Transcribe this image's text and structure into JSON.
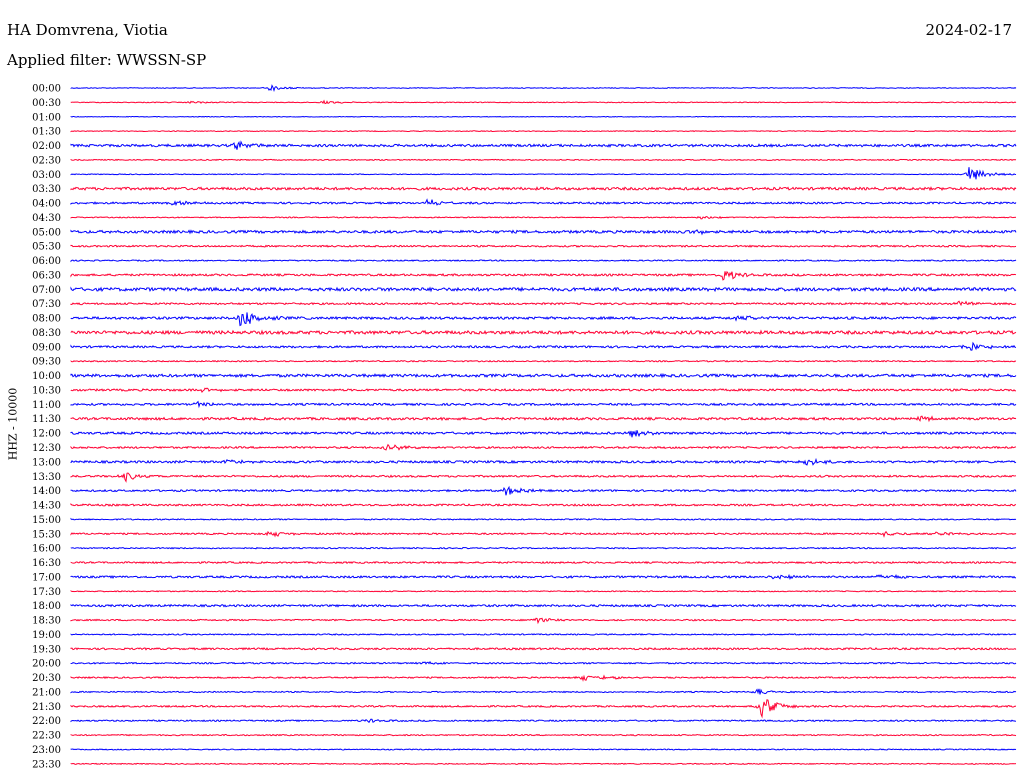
{
  "header": {
    "station": "HA Domvrena, Viotia",
    "date": "2024-02-17",
    "filter": "Applied filter: WWSSN-SP"
  },
  "colors": {
    "odd_trace": "#0000ff",
    "even_trace": "#ff0033",
    "text": "#000000"
  },
  "chart_data": {
    "type": "line",
    "title": "HA Domvrena, Viotia",
    "subtitle": "Applied filter: WWSSN-SP",
    "ylabel": "HHZ - 10000",
    "xlabel": "",
    "row_labels": [
      "00:00",
      "00:30",
      "01:00",
      "01:30",
      "02:00",
      "02:30",
      "03:00",
      "03:30",
      "04:00",
      "04:30",
      "05:00",
      "05:30",
      "06:00",
      "06:30",
      "07:00",
      "07:30",
      "08:00",
      "08:30",
      "09:00",
      "09:30",
      "10:00",
      "10:30",
      "11:00",
      "11:30",
      "12:00",
      "12:30",
      "13:00",
      "13:30",
      "14:00",
      "14:30",
      "15:00",
      "15:30",
      "16:00",
      "16:30",
      "17:00",
      "17:30",
      "18:00",
      "18:30",
      "19:00",
      "19:30",
      "20:00",
      "20:30",
      "21:00",
      "21:30",
      "22:00",
      "22:30",
      "23:00",
      "23:30"
    ],
    "row_minutes": 30,
    "noise_level": [
      0.4,
      0.4,
      0.3,
      0.4,
      1.2,
      0.5,
      0.4,
      1.3,
      0.9,
      0.5,
      1.3,
      0.8,
      0.6,
      1.0,
      1.6,
      0.9,
      1.2,
      1.6,
      1.0,
      0.6,
      1.4,
      1.0,
      1.0,
      1.2,
      1.1,
      0.9,
      1.1,
      0.9,
      0.9,
      0.9,
      0.6,
      0.8,
      0.6,
      0.8,
      1.0,
      0.5,
      1.0,
      0.7,
      0.6,
      0.9,
      0.7,
      0.7,
      0.6,
      0.8,
      0.7,
      0.6,
      0.5,
      0.5
    ],
    "events": [
      {
        "row": 0,
        "minute": 6.3,
        "amplitude": 3
      },
      {
        "row": 1,
        "minute": 8.0,
        "amplitude": 2
      },
      {
        "row": 1,
        "minute": 3.8,
        "amplitude": 1.5
      },
      {
        "row": 4,
        "minute": 5.2,
        "amplitude": 4
      },
      {
        "row": 6,
        "minute": 28.5,
        "amplitude": 8
      },
      {
        "row": 8,
        "minute": 3.2,
        "amplitude": 3
      },
      {
        "row": 8,
        "minute": 11.3,
        "amplitude": 4
      },
      {
        "row": 9,
        "minute": 20.0,
        "amplitude": 2
      },
      {
        "row": 10,
        "minute": 19.7,
        "amplitude": 3
      },
      {
        "row": 13,
        "minute": 20.7,
        "amplitude": 6
      },
      {
        "row": 15,
        "minute": 28.2,
        "amplitude": 3
      },
      {
        "row": 16,
        "minute": 5.4,
        "amplitude": 11
      },
      {
        "row": 16,
        "minute": 21.2,
        "amplitude": 3
      },
      {
        "row": 18,
        "minute": 28.4,
        "amplitude": 6
      },
      {
        "row": 21,
        "minute": 4.2,
        "amplitude": 2
      },
      {
        "row": 22,
        "minute": 4.0,
        "amplitude": 3
      },
      {
        "row": 23,
        "minute": 26.9,
        "amplitude": 3
      },
      {
        "row": 24,
        "minute": 17.8,
        "amplitude": 5
      },
      {
        "row": 25,
        "minute": 10.0,
        "amplitude": 4
      },
      {
        "row": 26,
        "minute": 5.0,
        "amplitude": 3
      },
      {
        "row": 26,
        "minute": 23.3,
        "amplitude": 4
      },
      {
        "row": 27,
        "minute": 1.7,
        "amplitude": 5
      },
      {
        "row": 28,
        "minute": 13.8,
        "amplitude": 5
      },
      {
        "row": 31,
        "minute": 6.3,
        "amplitude": 3
      },
      {
        "row": 31,
        "minute": 25.8,
        "amplitude": 2.5
      },
      {
        "row": 31,
        "minute": 27.5,
        "amplitude": 2.5
      },
      {
        "row": 34,
        "minute": 22.3,
        "amplitude": 3
      },
      {
        "row": 34,
        "minute": 25.7,
        "amplitude": 3
      },
      {
        "row": 37,
        "minute": 14.8,
        "amplitude": 3
      },
      {
        "row": 40,
        "minute": 11.2,
        "amplitude": 2
      },
      {
        "row": 41,
        "minute": 16.2,
        "amplitude": 3
      },
      {
        "row": 41,
        "minute": 16.9,
        "amplitude": 3
      },
      {
        "row": 42,
        "minute": 21.8,
        "amplitude": 3
      },
      {
        "row": 43,
        "minute": 21.9,
        "amplitude": 11
      },
      {
        "row": 44,
        "minute": 9.4,
        "amplitude": 2
      }
    ]
  }
}
